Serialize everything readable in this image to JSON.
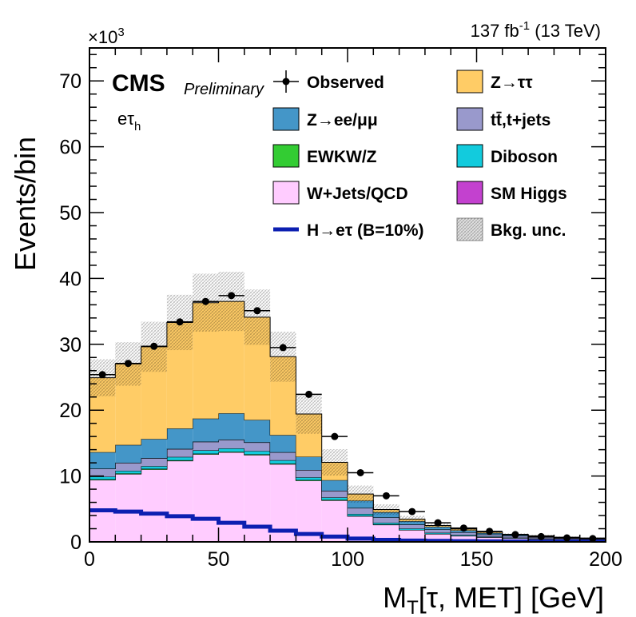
{
  "chart_data": {
    "type": "bar",
    "stacked": true,
    "title": "",
    "lumi_label": "137 fb",
    "lumi_sup": "-1",
    "lumi_energy": "(13 TeV)",
    "experiment": "CMS",
    "experiment_sub": "Preliminary",
    "channel": "eτ",
    "channel_sub": "h",
    "xlabel_main": "M",
    "xlabel_sub": "T",
    "xlabel_rest": "[τ, MET] [GeV]",
    "ylabel": "Events/bin",
    "y_multiplier_base": "×10",
    "y_multiplier_exp": "3",
    "xlim": [
      0,
      200
    ],
    "ylim": [
      0,
      75
    ],
    "x_ticks": [
      0,
      50,
      100,
      150,
      200
    ],
    "y_ticks": [
      0,
      10,
      20,
      30,
      40,
      50,
      60,
      70
    ],
    "bin_edges": [
      0,
      10,
      20,
      30,
      40,
      50,
      60,
      70,
      80,
      90,
      100,
      110,
      120,
      130,
      140,
      150,
      160,
      170,
      180,
      190,
      200
    ],
    "series": [
      {
        "name": "W+Jets/QCD",
        "color": "#ffccff",
        "values": [
          9.4,
          10.3,
          11.0,
          12.3,
          13.3,
          13.6,
          13.2,
          11.8,
          9.3,
          6.3,
          3.9,
          2.6,
          1.8,
          1.2,
          0.9,
          0.7,
          0.55,
          0.45,
          0.35,
          0.3
        ]
      },
      {
        "name": "EWKW/Z",
        "color": "#33cc33",
        "values": [
          0.1,
          0.1,
          0.1,
          0.1,
          0.1,
          0.1,
          0.1,
          0.1,
          0.1,
          0.1,
          0.05,
          0.05,
          0.03,
          0.03,
          0.02,
          0.02,
          0.02,
          0.01,
          0.01,
          0.01
        ]
      },
      {
        "name": "Diboson",
        "color": "#12cbdd",
        "values": [
          0.4,
          0.4,
          0.4,
          0.5,
          0.5,
          0.5,
          0.5,
          0.5,
          0.4,
          0.35,
          0.3,
          0.25,
          0.2,
          0.15,
          0.12,
          0.1,
          0.08,
          0.06,
          0.05,
          0.04
        ]
      },
      {
        "name": "tt̄,t+jets",
        "color": "#9999cc",
        "values": [
          1.2,
          1.2,
          1.2,
          1.2,
          1.3,
          1.3,
          1.3,
          1.2,
          1.1,
          1.0,
          0.9,
          0.8,
          0.6,
          0.5,
          0.4,
          0.3,
          0.25,
          0.2,
          0.15,
          0.1
        ]
      },
      {
        "name": "SM Higgs",
        "color": "#c341cf",
        "values": [
          0.02,
          0.02,
          0.02,
          0.02,
          0.02,
          0.02,
          0.02,
          0.02,
          0.02,
          0.02,
          0.01,
          0.01,
          0.01,
          0.01,
          0.01,
          0.01,
          0.01,
          0.01,
          0.01,
          0.01
        ]
      },
      {
        "name": "Z→ee/μμ",
        "color": "#4496c8",
        "values": [
          2.5,
          2.7,
          2.9,
          3.1,
          3.5,
          4.0,
          3.4,
          2.6,
          2.0,
          1.6,
          1.1,
          0.8,
          0.5,
          0.4,
          0.3,
          0.2,
          0.15,
          0.1,
          0.1,
          0.08
        ]
      },
      {
        "name": "Z→ττ",
        "color": "#ffcc66",
        "values": [
          11.3,
          12.3,
          14.0,
          16.1,
          17.6,
          17.0,
          15.6,
          11.9,
          6.5,
          2.7,
          1.0,
          0.4,
          0.3,
          0.2,
          0.2,
          0.15,
          0.1,
          0.1,
          0.05,
          0.05
        ]
      }
    ],
    "observed": {
      "name": "Observed",
      "values": [
        25.4,
        27.1,
        29.7,
        33.4,
        36.5,
        37.4,
        35.1,
        29.5,
        22.4,
        16.0,
        10.5,
        7.0,
        4.6,
        2.9,
        2.1,
        1.6,
        1.1,
        0.8,
        0.6,
        0.5
      ]
    },
    "signal": {
      "name": "H→eτ (B=10%)",
      "color": "#0c1fb1",
      "values": [
        4.8,
        4.6,
        4.3,
        3.9,
        3.5,
        2.9,
        2.3,
        1.7,
        1.2,
        0.8,
        0.5,
        0.3,
        0.2,
        0.15,
        0.1,
        0.08,
        0.06,
        0.05,
        0.04,
        0.03
      ]
    },
    "uncertainty": {
      "name": "Bkg. unc.",
      "values": [
        2.8,
        3.3,
        3.8,
        4.2,
        4.4,
        4.5,
        4.2,
        3.8,
        3.0,
        2.0,
        1.3,
        0.8,
        0.5,
        0.35,
        0.25,
        0.2,
        0.15,
        0.12,
        0.1,
        0.08
      ]
    },
    "legend": {
      "placement": "top-right",
      "entries": [
        {
          "label": "Observed",
          "style": "marker"
        },
        {
          "label": "Z→ττ",
          "style": "fill",
          "color": "#ffcc66"
        },
        {
          "label": "Z→ee/μμ",
          "style": "fill",
          "color": "#4496c8"
        },
        {
          "label": "tt̄,t+jets",
          "style": "fill",
          "color": "#9999cc"
        },
        {
          "label": "EWKW/Z",
          "style": "fill",
          "color": "#33cc33"
        },
        {
          "label": "Diboson",
          "style": "fill",
          "color": "#12cbdd"
        },
        {
          "label": "W+Jets/QCD",
          "style": "fill",
          "color": "#ffccff"
        },
        {
          "label": "SM Higgs",
          "style": "fill",
          "color": "#c341cf"
        },
        {
          "label": "H→eτ (B=10%)",
          "style": "line",
          "color": "#0c1fb1"
        },
        {
          "label": "Bkg. unc.",
          "style": "hatch"
        }
      ]
    }
  }
}
